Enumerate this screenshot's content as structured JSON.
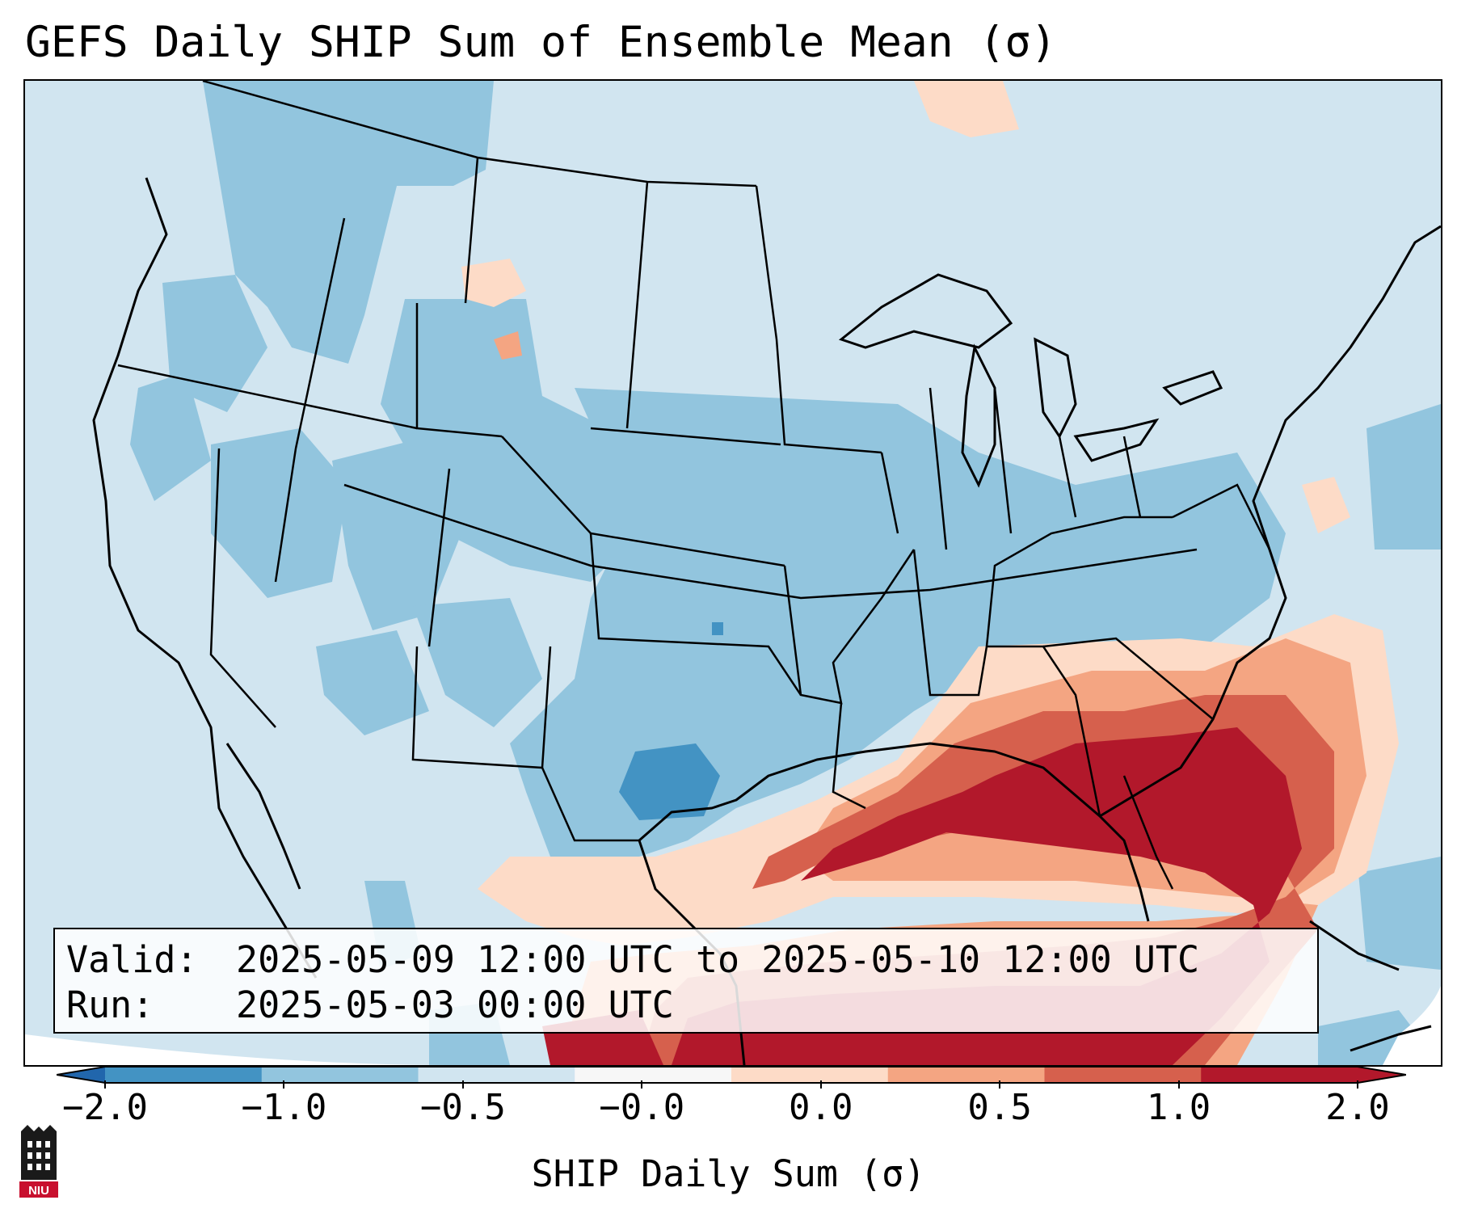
{
  "title": "GEFS Daily SHIP Sum of Ensemble Mean (σ)",
  "info": {
    "valid_label": "Valid:",
    "valid_value": "2025-05-09 12:00 UTC to 2025-05-10 12:00 UTC",
    "run_label": "Run:",
    "run_value": "2025-05-03 00:00 UTC"
  },
  "colorbar": {
    "label": "SHIP Daily Sum (σ)",
    "ticks": [
      "−2.0",
      "−1.0",
      "−0.5",
      "−0.0",
      "0.0",
      "0.5",
      "1.0",
      "2.0"
    ],
    "colors": [
      "#4393c3",
      "#92c5de",
      "#d1e5f0",
      "#f7f7f7",
      "#fddbc7",
      "#f4a582",
      "#d6604d",
      "#b2182b"
    ],
    "under_color": "#2166ac",
    "over_color": "#b2182b"
  },
  "logo": {
    "text": "NIU",
    "color": "#c8102e"
  },
  "map": {
    "projection": "Lambert Conformal (CONUS)",
    "background": "#d1e5f0"
  }
}
